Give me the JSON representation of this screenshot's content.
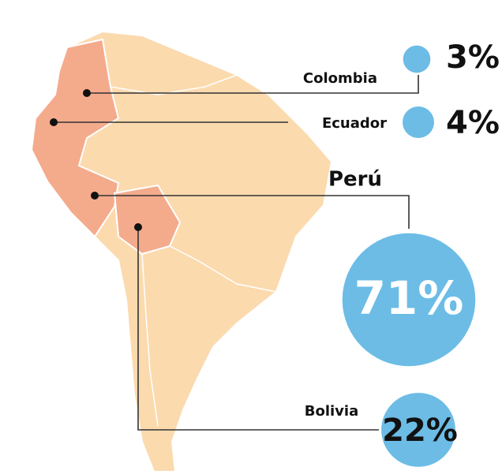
{
  "map": {
    "regions": [
      {
        "name": "Colombia",
        "value": 3,
        "value_label": "3%"
      },
      {
        "name": "Ecuador",
        "value": 4,
        "value_label": "4%"
      },
      {
        "name": "Perú",
        "value": 71,
        "value_label": "71%"
      },
      {
        "name": "Bolivia",
        "value": 22,
        "value_label": "22%"
      }
    ],
    "bubble_color": "#6cbce6",
    "highlight_color": "#f4ab8c",
    "land_color": "#fbdaae"
  }
}
